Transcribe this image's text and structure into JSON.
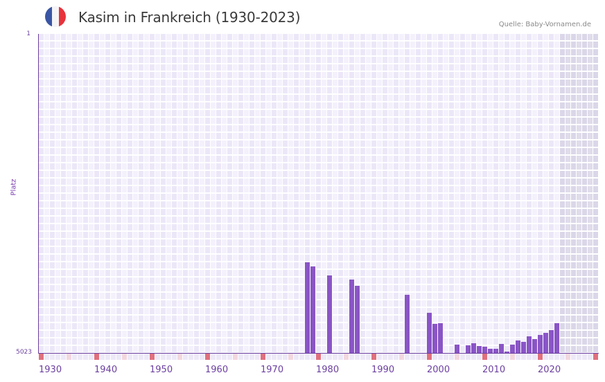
{
  "header": {
    "title": "Kasim in Frankreich (1930-2023)",
    "source": "Quelle: Baby-Vornamen.de",
    "flag_icon": "france-flag-icon",
    "flag_colors": [
      "#3a55a4",
      "#f4f4f6",
      "#e8323c"
    ]
  },
  "colors": {
    "bar": "#8a55c6",
    "axis": "#6b3fa0",
    "decade_marker": "#e0707e",
    "half_decade_marker": "#f2d7df",
    "future_shade": "rgba(200,195,215,0.45)"
  },
  "chart_data": {
    "type": "bar",
    "title": "Kasim in Frankreich (1930-2023)",
    "xlabel": "",
    "ylabel": "Platz",
    "y_inverted": true,
    "ylim": [
      1,
      5023
    ],
    "y_ticks": [
      "1",
      "5023"
    ],
    "x_range": [
      1930,
      2030
    ],
    "x_ticks": [
      "1930",
      "1940",
      "1950",
      "1960",
      "1970",
      "1980",
      "1990",
      "2000",
      "2010",
      "2020"
    ],
    "future_shaded_from": 2024,
    "grid": true,
    "legend": null,
    "categories": [
      1978,
      1979,
      1982,
      1986,
      1987,
      1996,
      2000,
      2001,
      2002,
      2005,
      2007,
      2008,
      2009,
      2010,
      2011,
      2012,
      2013,
      2014,
      2015,
      2016,
      2017,
      2018,
      2019,
      2020,
      2021,
      2022,
      2023
    ],
    "values": [
      3593,
      3659,
      3800,
      3866,
      3964,
      4106,
      4390,
      4564,
      4553,
      4892,
      4903,
      4870,
      4914,
      4925,
      4958,
      4958,
      4881,
      5001,
      4892,
      4827,
      4849,
      4761,
      4805,
      4739,
      4706,
      4663,
      4553
    ]
  }
}
